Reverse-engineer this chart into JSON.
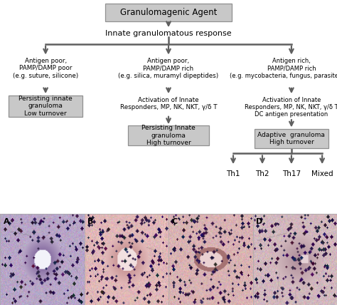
{
  "arrow_color": "#606060",
  "box_fill": "#c8c8c8",
  "box_edge": "#909090",
  "bg_color": "#ffffff",
  "title_text": "Granulomagenic Agent",
  "innate_text": "Innate granulomatous response",
  "col1_label": "Antigen poor,\nPAMP/DAMP poor\n(e.g. suture, silicone)",
  "col2_label": "Antigen poor,\nPAMP/DAMP rich\n(e.g. silica, muramyl dipeptides)",
  "col3_label": "Antigen rich,\nPAMP/DAMP rich\n(e.g. mycobacteria, fungus, parasite ova)",
  "left_box_text": "Persisting innate\ngranuloma\nLow turnover",
  "mid_act_text": "Activation of Innate\nResponders, MP, NK, NKT, γ/δ T",
  "right_act_text": "Activation of Innate\nResponders, MP, NK, NKT, γ/δ T\nDC antigen presentation",
  "mid_box_text": "Persisting Innate\ngranuloma\nHigh turnover",
  "right_box_text": "Adaptive  granuloma\nHigh turnover",
  "th_labels": [
    "Th1",
    "Th2",
    "Th17",
    "Mixed"
  ],
  "image_labels": [
    "A",
    "B",
    "C",
    "D"
  ]
}
